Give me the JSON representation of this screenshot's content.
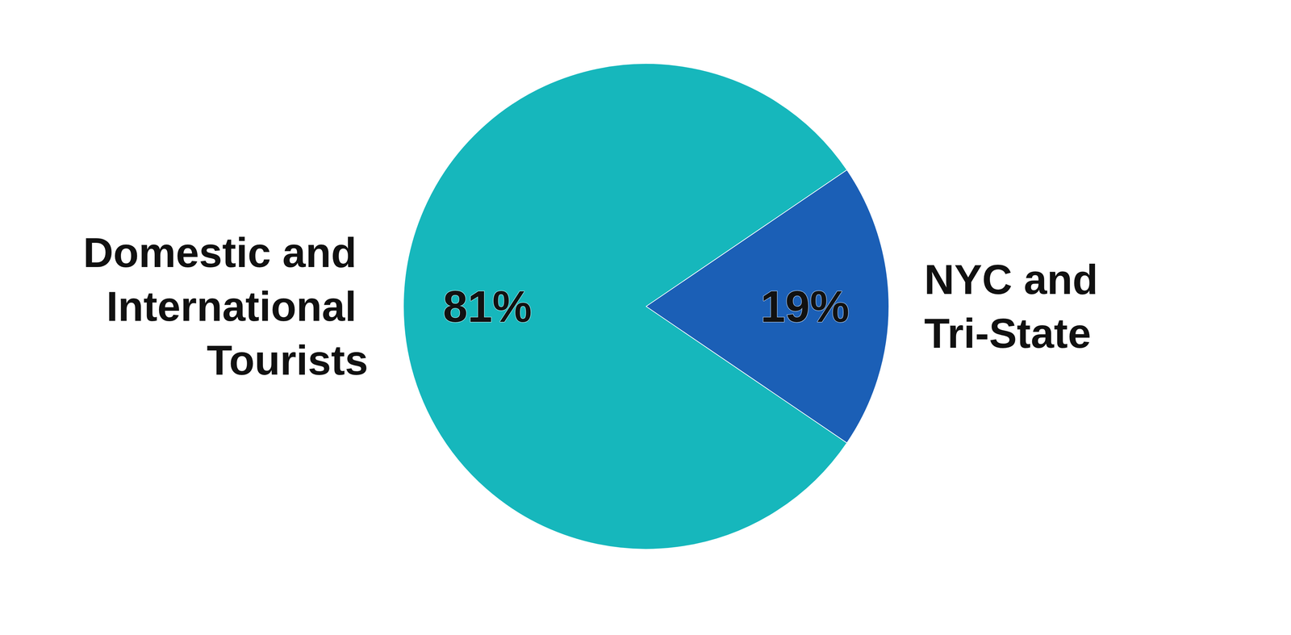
{
  "chart_data": {
    "type": "pie",
    "categories": [
      "Domestic and International Tourists",
      "NYC and Tri-State"
    ],
    "values": [
      81,
      19
    ],
    "value_labels": [
      "81%",
      "19%"
    ],
    "colors": [
      "#16b7bc",
      "#1b5fb6"
    ],
    "data_labels": true
  }
}
